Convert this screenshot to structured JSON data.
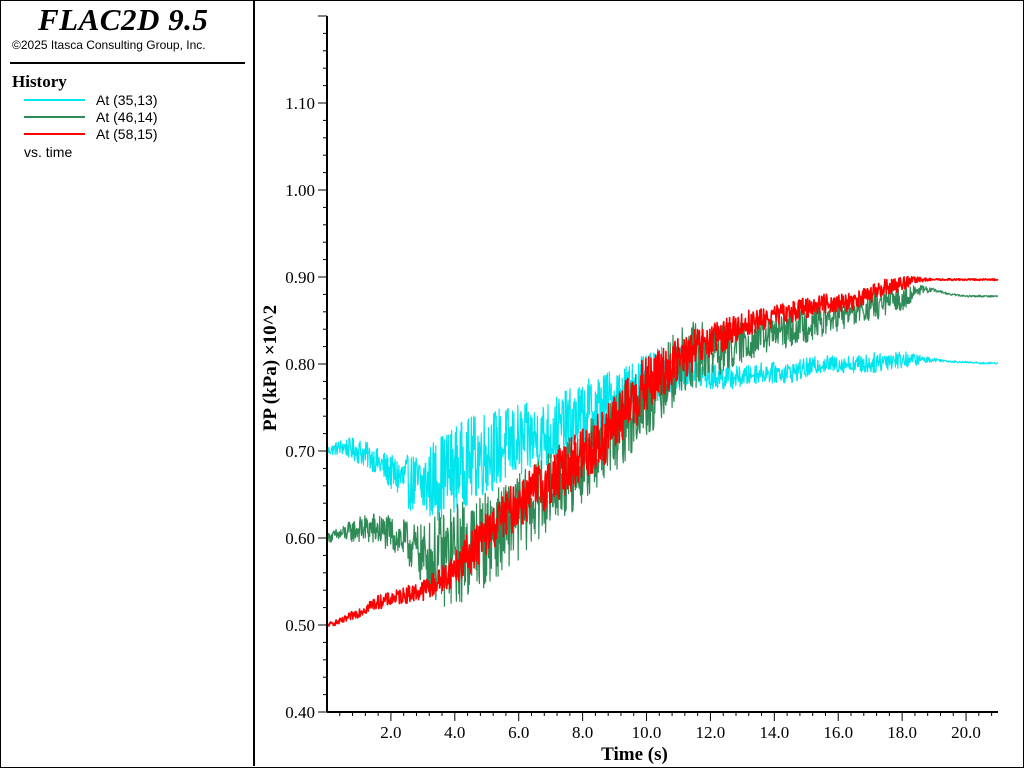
{
  "app": {
    "title": "FLAC2D 9.5",
    "copyright": "©2025 Itasca Consulting Group, Inc."
  },
  "legend": {
    "title": "History",
    "items": [
      {
        "label": "At (35,13)",
        "color": "#00e5ee"
      },
      {
        "label": "At (46,14)",
        "color": "#2e8b57"
      },
      {
        "label": "At (58,15)",
        "color": "#ff0000"
      }
    ],
    "vs_label": "vs. time"
  },
  "chart_data": {
    "type": "line",
    "title": "",
    "xlabel": "Time (s)",
    "ylabel": "PP (kPa) ×10^2",
    "xlim": [
      0,
      21.0
    ],
    "ylim": [
      0.4,
      1.2
    ],
    "x_ticks": [
      "2.0",
      "4.0",
      "6.0",
      "8.0",
      "10.0",
      "12.0",
      "14.0",
      "16.0",
      "18.0",
      "20.0"
    ],
    "y_ticks": [
      "0.40",
      "0.50",
      "0.60",
      "0.70",
      "0.80",
      "0.90",
      "1.00",
      "1.10"
    ],
    "grid": false,
    "legend_position": "left panel",
    "series": [
      {
        "name": "At (35,13)",
        "color": "#00e5ee",
        "x": [
          0,
          0.5,
          1.0,
          1.5,
          2.0,
          2.5,
          3.0,
          3.5,
          4.0,
          4.5,
          5.0,
          5.5,
          6.0,
          6.5,
          7.0,
          7.5,
          8.0,
          8.5,
          9.0,
          9.5,
          10.0,
          10.5,
          11.0,
          11.5,
          12.0,
          12.5,
          13.0,
          13.5,
          14.0,
          14.5,
          15.0,
          15.5,
          16.0,
          16.5,
          17.0,
          17.5,
          18.0,
          18.5,
          19.0,
          19.5,
          20.0,
          20.5,
          21.0
        ],
        "y": [
          0.7,
          0.705,
          0.7,
          0.69,
          0.675,
          0.665,
          0.66,
          0.67,
          0.68,
          0.69,
          0.7,
          0.705,
          0.71,
          0.715,
          0.72,
          0.73,
          0.74,
          0.75,
          0.76,
          0.77,
          0.78,
          0.79,
          0.795,
          0.79,
          0.785,
          0.785,
          0.785,
          0.79,
          0.79,
          0.79,
          0.795,
          0.8,
          0.8,
          0.8,
          0.8,
          0.805,
          0.805,
          0.805,
          0.805,
          0.803,
          0.802,
          0.801,
          0.801
        ],
        "noise": [
          0.005,
          0.01,
          0.015,
          0.015,
          0.02,
          0.03,
          0.04,
          0.05,
          0.05,
          0.05,
          0.05,
          0.045,
          0.045,
          0.04,
          0.04,
          0.04,
          0.04,
          0.04,
          0.035,
          0.035,
          0.03,
          0.03,
          0.025,
          0.02,
          0.015,
          0.015,
          0.012,
          0.012,
          0.012,
          0.012,
          0.012,
          0.01,
          0.01,
          0.01,
          0.012,
          0.012,
          0.01,
          0.006,
          0.002,
          0.001,
          0.001,
          0.001,
          0.001
        ]
      },
      {
        "name": "At (46,14)",
        "color": "#2e8b57",
        "x": [
          0,
          0.5,
          1.0,
          1.5,
          2.0,
          2.5,
          3.0,
          3.5,
          4.0,
          4.5,
          5.0,
          5.5,
          6.0,
          6.5,
          7.0,
          7.5,
          8.0,
          8.5,
          9.0,
          9.5,
          10.0,
          10.5,
          11.0,
          11.5,
          12.0,
          12.5,
          13.0,
          13.5,
          14.0,
          14.5,
          15.0,
          15.5,
          16.0,
          16.5,
          17.0,
          17.5,
          18.0,
          18.5,
          19.0,
          19.5,
          20.0,
          20.5,
          21.0
        ],
        "y": [
          0.6,
          0.605,
          0.61,
          0.61,
          0.605,
          0.595,
          0.58,
          0.575,
          0.58,
          0.59,
          0.6,
          0.61,
          0.625,
          0.64,
          0.655,
          0.67,
          0.685,
          0.7,
          0.72,
          0.74,
          0.76,
          0.78,
          0.8,
          0.81,
          0.815,
          0.82,
          0.825,
          0.83,
          0.835,
          0.84,
          0.845,
          0.85,
          0.855,
          0.86,
          0.865,
          0.87,
          0.875,
          0.885,
          0.885,
          0.88,
          0.878,
          0.878,
          0.878
        ],
        "noise": [
          0.005,
          0.01,
          0.015,
          0.02,
          0.02,
          0.025,
          0.035,
          0.055,
          0.06,
          0.06,
          0.055,
          0.05,
          0.05,
          0.045,
          0.045,
          0.045,
          0.045,
          0.045,
          0.045,
          0.045,
          0.045,
          0.045,
          0.04,
          0.04,
          0.035,
          0.03,
          0.025,
          0.022,
          0.02,
          0.02,
          0.02,
          0.018,
          0.018,
          0.018,
          0.016,
          0.016,
          0.014,
          0.006,
          0.002,
          0.001,
          0.001,
          0.001,
          0.001
        ]
      },
      {
        "name": "At (58,15)",
        "color": "#ff0000",
        "x": [
          0,
          0.5,
          1.0,
          1.5,
          2.0,
          2.5,
          3.0,
          3.5,
          4.0,
          4.5,
          5.0,
          5.5,
          6.0,
          6.5,
          7.0,
          7.5,
          8.0,
          8.5,
          9.0,
          9.5,
          10.0,
          10.5,
          11.0,
          11.5,
          12.0,
          12.5,
          13.0,
          13.5,
          14.0,
          14.5,
          15.0,
          15.5,
          16.0,
          16.5,
          17.0,
          17.5,
          18.0,
          18.5,
          19.0,
          19.5,
          20.0,
          20.5,
          21.0
        ],
        "y": [
          0.5,
          0.505,
          0.515,
          0.525,
          0.53,
          0.535,
          0.54,
          0.55,
          0.565,
          0.585,
          0.605,
          0.625,
          0.64,
          0.655,
          0.665,
          0.68,
          0.695,
          0.71,
          0.73,
          0.755,
          0.775,
          0.79,
          0.805,
          0.815,
          0.825,
          0.835,
          0.845,
          0.85,
          0.855,
          0.86,
          0.865,
          0.87,
          0.87,
          0.872,
          0.88,
          0.888,
          0.893,
          0.897,
          0.897,
          0.897,
          0.897,
          0.897,
          0.897
        ],
        "noise": [
          0.002,
          0.004,
          0.006,
          0.008,
          0.008,
          0.01,
          0.012,
          0.015,
          0.02,
          0.025,
          0.025,
          0.025,
          0.03,
          0.03,
          0.03,
          0.03,
          0.035,
          0.035,
          0.035,
          0.035,
          0.035,
          0.03,
          0.025,
          0.025,
          0.02,
          0.018,
          0.016,
          0.014,
          0.012,
          0.012,
          0.012,
          0.012,
          0.01,
          0.01,
          0.01,
          0.01,
          0.008,
          0.003,
          0.001,
          0.001,
          0.001,
          0.001,
          0.001
        ]
      }
    ]
  }
}
